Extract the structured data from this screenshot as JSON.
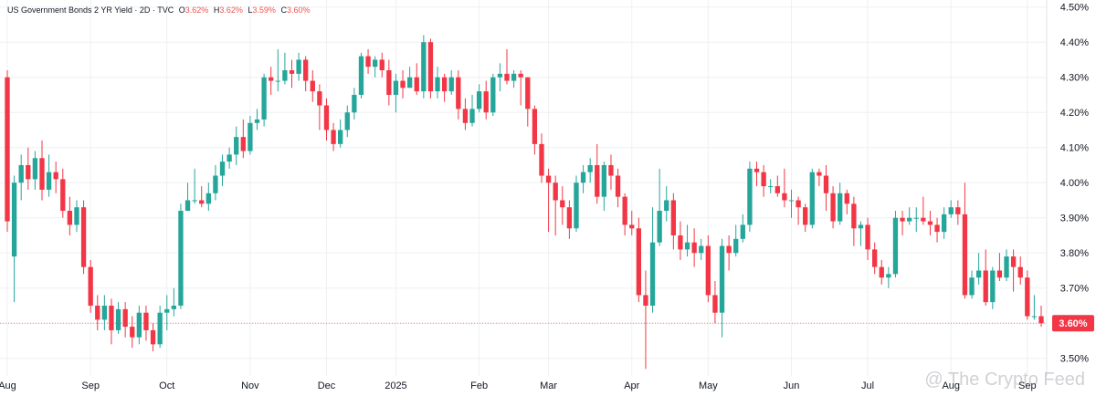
{
  "header": {
    "title": "US Government Bonds 2 YR Yield · 2D · TVC",
    "open_label": "O",
    "open": "3.62%",
    "high_label": "H",
    "high": "3.62%",
    "low_label": "L",
    "low": "3.59%",
    "close_label": "C",
    "close": "3.60%"
  },
  "watermark": "@ The Crypto Feed",
  "colors": {
    "up": "#26a69a",
    "down": "#f23645",
    "grid": "#eef0f3",
    "axis_text": "#131722",
    "price_tag": "#f23645"
  },
  "chart_data": {
    "type": "candlestick",
    "unit": "%",
    "ylim": [
      3.45,
      4.52
    ],
    "y_ticks": [
      3.5,
      3.6,
      3.7,
      3.8,
      3.9,
      4.0,
      4.1,
      4.2,
      4.3,
      4.4,
      4.5
    ],
    "y_tick_labels": [
      "3.50%",
      "3.60%",
      "3.70%",
      "3.80%",
      "3.90%",
      "4.00%",
      "4.10%",
      "4.20%",
      "4.30%",
      "4.40%",
      "4.50%"
    ],
    "x_labels": [
      {
        "label": "Aug",
        "index": 0
      },
      {
        "label": "Sep",
        "index": 12
      },
      {
        "label": "Oct",
        "index": 23
      },
      {
        "label": "Nov",
        "index": 35
      },
      {
        "label": "Dec",
        "index": 46
      },
      {
        "label": "2025",
        "index": 56
      },
      {
        "label": "Feb",
        "index": 68
      },
      {
        "label": "Mar",
        "index": 78
      },
      {
        "label": "Apr",
        "index": 90
      },
      {
        "label": "May",
        "index": 101
      },
      {
        "label": "Jun",
        "index": 113
      },
      {
        "label": "Jul",
        "index": 124
      },
      {
        "label": "Aug",
        "index": 136
      },
      {
        "label": "Sep",
        "index": 147
      }
    ],
    "last_price": 3.6,
    "last_price_label": "3.60%",
    "candles": [
      [
        4.3,
        3.89,
        4.32,
        3.86
      ],
      [
        3.79,
        4.0,
        4.02,
        3.66
      ],
      [
        4.0,
        4.05,
        4.08,
        3.95
      ],
      [
        4.05,
        4.01,
        4.1,
        3.98
      ],
      [
        4.01,
        4.07,
        4.09,
        3.98
      ],
      [
        4.07,
        3.98,
        4.12,
        3.95
      ],
      [
        3.98,
        4.03,
        4.08,
        3.96
      ],
      [
        4.03,
        4.01,
        4.06,
        3.97
      ],
      [
        4.01,
        3.92,
        4.04,
        3.9
      ],
      [
        3.92,
        3.88,
        3.96,
        3.85
      ],
      [
        3.88,
        3.93,
        3.95,
        3.86
      ],
      [
        3.93,
        3.76,
        3.95,
        3.74
      ],
      [
        3.76,
        3.65,
        3.78,
        3.63
      ],
      [
        3.65,
        3.61,
        3.68,
        3.58
      ],
      [
        3.61,
        3.65,
        3.68,
        3.58
      ],
      [
        3.65,
        3.58,
        3.67,
        3.54
      ],
      [
        3.58,
        3.64,
        3.66,
        3.57
      ],
      [
        3.64,
        3.59,
        3.66,
        3.56
      ],
      [
        3.59,
        3.56,
        3.62,
        3.53
      ],
      [
        3.56,
        3.63,
        3.65,
        3.54
      ],
      [
        3.63,
        3.58,
        3.65,
        3.55
      ],
      [
        3.58,
        3.54,
        3.6,
        3.52
      ],
      [
        3.54,
        3.63,
        3.65,
        3.53
      ],
      [
        3.63,
        3.64,
        3.68,
        3.58
      ],
      [
        3.64,
        3.65,
        3.7,
        3.62
      ],
      [
        3.65,
        3.92,
        3.94,
        3.64
      ],
      [
        3.92,
        3.95,
        4.0,
        3.93
      ],
      [
        3.95,
        3.95,
        4.04,
        3.94
      ],
      [
        3.95,
        3.94,
        3.99,
        3.93
      ],
      [
        3.94,
        3.97,
        4.0,
        3.92
      ],
      [
        3.97,
        4.02,
        4.05,
        3.95
      ],
      [
        4.02,
        4.06,
        4.08,
        3.99
      ],
      [
        4.06,
        4.08,
        4.1,
        4.04
      ],
      [
        4.08,
        4.13,
        4.16,
        4.05
      ],
      [
        4.13,
        4.09,
        4.18,
        4.07
      ],
      [
        4.09,
        4.17,
        4.19,
        4.08
      ],
      [
        4.17,
        4.18,
        4.21,
        4.15
      ],
      [
        4.18,
        4.3,
        4.31,
        4.16
      ],
      [
        4.3,
        4.29,
        4.33,
        4.25
      ],
      [
        4.29,
        4.29,
        4.38,
        4.26
      ],
      [
        4.29,
        4.32,
        4.37,
        4.28
      ],
      [
        4.32,
        4.31,
        4.35,
        4.27
      ],
      [
        4.31,
        4.35,
        4.37,
        4.29
      ],
      [
        4.35,
        4.29,
        4.36,
        4.26
      ],
      [
        4.29,
        4.26,
        4.32,
        4.23
      ],
      [
        4.26,
        4.22,
        4.28,
        4.15
      ],
      [
        4.22,
        4.15,
        4.24,
        4.12
      ],
      [
        4.15,
        4.11,
        4.17,
        4.09
      ],
      [
        4.11,
        4.15,
        4.18,
        4.1
      ],
      [
        4.15,
        4.2,
        4.22,
        4.13
      ],
      [
        4.2,
        4.25,
        4.27,
        4.18
      ],
      [
        4.25,
        4.36,
        4.37,
        4.24
      ],
      [
        4.36,
        4.33,
        4.38,
        4.31
      ],
      [
        4.33,
        4.35,
        4.36,
        4.3
      ],
      [
        4.35,
        4.32,
        4.37,
        4.3
      ],
      [
        4.32,
        4.25,
        4.35,
        4.22
      ],
      [
        4.25,
        4.29,
        4.31,
        4.2
      ],
      [
        4.29,
        4.27,
        4.32,
        4.24
      ],
      [
        4.27,
        4.3,
        4.33,
        4.27
      ],
      [
        4.3,
        4.26,
        4.34,
        4.25
      ],
      [
        4.26,
        4.4,
        4.42,
        4.24
      ],
      [
        4.4,
        4.26,
        4.41,
        4.24
      ],
      [
        4.26,
        4.3,
        4.33,
        4.24
      ],
      [
        4.3,
        4.26,
        4.31,
        4.23
      ],
      [
        4.26,
        4.3,
        4.32,
        4.25
      ],
      [
        4.3,
        4.21,
        4.32,
        4.18
      ],
      [
        4.21,
        4.17,
        4.24,
        4.15
      ],
      [
        4.17,
        4.21,
        4.25,
        4.16
      ],
      [
        4.21,
        4.26,
        4.28,
        4.2
      ],
      [
        4.26,
        4.2,
        4.29,
        4.18
      ],
      [
        4.2,
        4.3,
        4.31,
        4.19
      ],
      [
        4.3,
        4.31,
        4.34,
        4.26
      ],
      [
        4.31,
        4.29,
        4.38,
        4.28
      ],
      [
        4.29,
        4.31,
        4.32,
        4.27
      ],
      [
        4.31,
        4.3,
        4.32,
        4.22
      ],
      [
        4.3,
        4.21,
        4.3,
        4.16
      ],
      [
        4.21,
        4.11,
        4.22,
        4.08
      ],
      [
        4.11,
        4.02,
        4.14,
        4.0
      ],
      [
        4.02,
        4.0,
        4.04,
        3.86
      ],
      [
        4.0,
        3.95,
        4.02,
        3.85
      ],
      [
        3.95,
        3.93,
        3.99,
        3.88
      ],
      [
        3.93,
        3.87,
        3.95,
        3.84
      ],
      [
        3.87,
        4.0,
        4.02,
        3.86
      ],
      [
        4.0,
        4.03,
        4.05,
        3.97
      ],
      [
        4.03,
        4.05,
        4.07,
        4.0
      ],
      [
        4.05,
        3.96,
        4.11,
        3.94
      ],
      [
        3.96,
        4.05,
        4.06,
        3.92
      ],
      [
        4.05,
        4.02,
        4.08,
        3.98
      ],
      [
        4.02,
        3.96,
        4.04,
        3.93
      ],
      [
        3.96,
        3.88,
        3.97,
        3.85
      ],
      [
        3.88,
        3.87,
        3.92,
        3.85
      ],
      [
        3.87,
        3.68,
        3.9,
        3.66
      ],
      [
        3.68,
        3.65,
        3.75,
        3.47
      ],
      [
        3.65,
        3.83,
        3.93,
        3.63
      ],
      [
        3.83,
        3.92,
        4.04,
        3.82
      ],
      [
        3.92,
        3.95,
        3.99,
        3.89
      ],
      [
        3.95,
        3.85,
        3.97,
        3.81
      ],
      [
        3.85,
        3.81,
        3.89,
        3.78
      ],
      [
        3.81,
        3.83,
        3.88,
        3.79
      ],
      [
        3.83,
        3.8,
        3.87,
        3.76
      ],
      [
        3.8,
        3.82,
        3.84,
        3.78
      ],
      [
        3.82,
        3.68,
        3.85,
        3.66
      ],
      [
        3.68,
        3.63,
        3.72,
        3.6
      ],
      [
        3.63,
        3.82,
        3.84,
        3.56
      ],
      [
        3.82,
        3.8,
        3.85,
        3.75
      ],
      [
        3.8,
        3.84,
        3.88,
        3.79
      ],
      [
        3.84,
        3.88,
        3.91,
        3.83
      ],
      [
        3.88,
        4.04,
        4.06,
        3.86
      ],
      [
        4.04,
        4.03,
        4.06,
        3.99
      ],
      [
        4.03,
        3.99,
        4.05,
        3.96
      ],
      [
        3.99,
        3.99,
        4.01,
        3.97
      ],
      [
        3.99,
        3.97,
        4.02,
        3.96
      ],
      [
        3.97,
        3.95,
        4.04,
        3.93
      ],
      [
        3.95,
        3.95,
        3.98,
        3.9
      ],
      [
        3.95,
        3.93,
        3.96,
        3.88
      ],
      [
        3.93,
        3.88,
        3.94,
        3.86
      ],
      [
        3.88,
        4.03,
        4.04,
        3.87
      ],
      [
        4.03,
        4.02,
        4.04,
        3.99
      ],
      [
        4.02,
        3.97,
        4.05,
        3.92
      ],
      [
        3.97,
        3.89,
        3.99,
        3.87
      ],
      [
        3.89,
        3.97,
        4.0,
        3.88
      ],
      [
        3.97,
        3.94,
        3.98,
        3.91
      ],
      [
        3.94,
        3.87,
        3.96,
        3.82
      ],
      [
        3.87,
        3.88,
        3.89,
        3.82
      ],
      [
        3.88,
        3.81,
        3.9,
        3.78
      ],
      [
        3.81,
        3.76,
        3.83,
        3.74
      ],
      [
        3.76,
        3.73,
        3.78,
        3.71
      ],
      [
        3.73,
        3.74,
        3.76,
        3.7
      ],
      [
        3.74,
        3.9,
        3.92,
        3.73
      ],
      [
        3.9,
        3.89,
        3.92,
        3.85
      ],
      [
        3.89,
        3.9,
        3.93,
        3.88
      ],
      [
        3.9,
        3.9,
        3.93,
        3.86
      ],
      [
        3.9,
        3.89,
        3.96,
        3.88
      ],
      [
        3.89,
        3.88,
        3.92,
        3.85
      ],
      [
        3.88,
        3.86,
        3.9,
        3.83
      ],
      [
        3.86,
        3.91,
        3.93,
        3.84
      ],
      [
        3.91,
        3.93,
        3.95,
        3.9
      ],
      [
        3.93,
        3.91,
        3.95,
        3.88
      ],
      [
        3.91,
        3.68,
        4.0,
        3.67
      ],
      [
        3.68,
        3.73,
        3.75,
        3.67
      ],
      [
        3.73,
        3.75,
        3.8,
        3.71
      ],
      [
        3.75,
        3.66,
        3.81,
        3.65
      ],
      [
        3.66,
        3.75,
        3.76,
        3.64
      ],
      [
        3.75,
        3.73,
        3.8,
        3.72
      ],
      [
        3.73,
        3.79,
        3.81,
        3.72
      ],
      [
        3.79,
        3.76,
        3.81,
        3.69
      ],
      [
        3.76,
        3.73,
        3.79,
        3.71
      ],
      [
        3.73,
        3.62,
        3.75,
        3.61
      ],
      [
        3.62,
        3.62,
        3.68,
        3.61
      ],
      [
        3.62,
        3.6,
        3.65,
        3.59
      ]
    ]
  }
}
